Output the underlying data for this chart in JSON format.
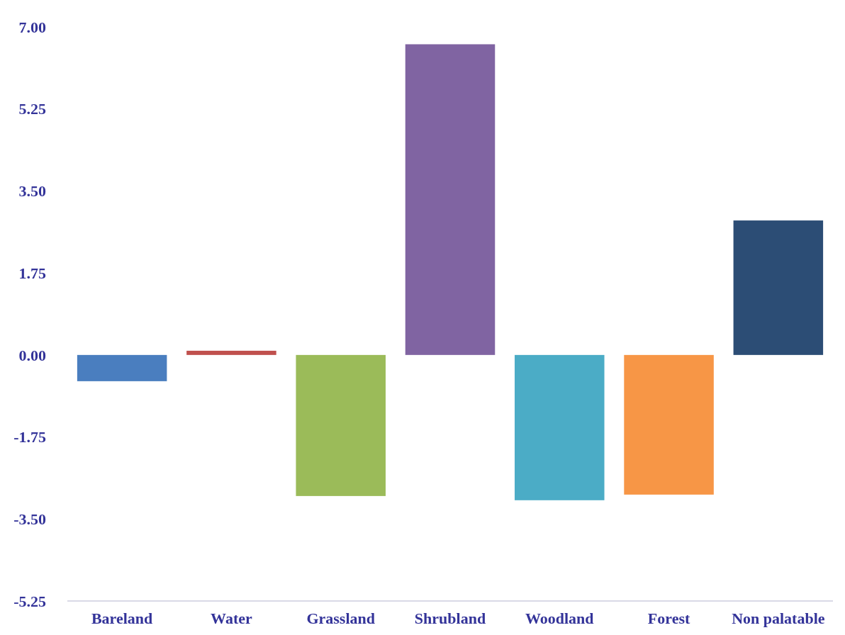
{
  "chart_data": {
    "type": "bar",
    "categories": [
      "Bareland",
      "Water",
      "Grassland",
      "Shrubland",
      "Woodland",
      "Forest",
      "Non palatable"
    ],
    "values": [
      -0.56,
      0.09,
      -3.01,
      6.63,
      -3.1,
      -2.98,
      2.87
    ],
    "colors": [
      "#4a7ebf",
      "#c0504d",
      "#9bbb59",
      "#8064a2",
      "#4bacc6",
      "#f79646",
      "#2c4d75"
    ],
    "ylim": [
      -5.25,
      7
    ],
    "yticks": [
      {
        "value": -5.25,
        "label": "-5.25"
      },
      {
        "value": -3.5,
        "label": "-3.50"
      },
      {
        "value": -1.75,
        "label": "-1.75"
      },
      {
        "value": 0,
        "label": "0.00"
      },
      {
        "value": 1.75,
        "label": "1.75"
      },
      {
        "value": 3.5,
        "label": "3.50"
      },
      {
        "value": 5.25,
        "label": "5.25"
      },
      {
        "value": 7,
        "label": "7.00"
      }
    ],
    "grid": false
  }
}
